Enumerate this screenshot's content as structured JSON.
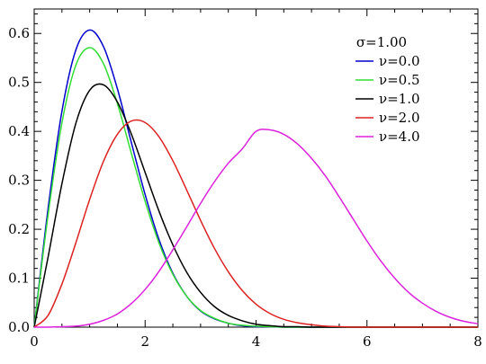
{
  "chart_data": {
    "type": "line",
    "title": "",
    "xlabel": "",
    "ylabel": "",
    "xlim": [
      0,
      8
    ],
    "ylim": [
      0,
      0.65
    ],
    "xticks": [
      0,
      2,
      4,
      6,
      8
    ],
    "xtick_labels": [
      "0",
      "2",
      "4",
      "6",
      "8"
    ],
    "yticks": [
      0,
      0.1,
      0.2,
      0.3,
      0.4,
      0.5,
      0.6
    ],
    "ytick_labels": [
      "0.0",
      "0.1",
      "0.2",
      "0.3",
      "0.4",
      "0.5",
      "0.6"
    ],
    "grid": false,
    "legend_position": "top-right",
    "legend_title": "σ=1.00",
    "x": [
      0.0,
      0.25,
      0.5,
      0.75,
      1.0,
      1.25,
      1.5,
      1.75,
      2.0,
      2.25,
      2.5,
      2.75,
      3.0,
      3.25,
      3.5,
      3.75,
      4.0,
      4.25,
      4.5,
      4.75,
      5.0,
      5.25,
      5.5,
      5.75,
      6.0,
      6.25,
      6.5,
      6.75,
      7.0,
      7.25,
      7.5,
      7.75,
      8.0
    ],
    "series": [
      {
        "name": "ν=0.0",
        "color": "#0000cc",
        "values": [
          0.0,
          0.242,
          0.441,
          0.566,
          0.607,
          0.573,
          0.487,
          0.378,
          0.271,
          0.179,
          0.11,
          0.063,
          0.033,
          0.017,
          0.008,
          0.003,
          0.001,
          0.001,
          0.0,
          0.0,
          0.0,
          0.0,
          0.0,
          0.0,
          0.0,
          0.0,
          0.0,
          0.0,
          0.0,
          0.0,
          0.0,
          0.0,
          0.0
        ]
      },
      {
        "name": "ν=0.5",
        "color": "#33dd33",
        "values": [
          0.0,
          0.229,
          0.417,
          0.535,
          0.571,
          0.538,
          0.457,
          0.356,
          0.257,
          0.172,
          0.108,
          0.063,
          0.034,
          0.018,
          0.008,
          0.004,
          0.002,
          0.001,
          0.0,
          0.0,
          0.0,
          0.0,
          0.0,
          0.0,
          0.0,
          0.0,
          0.0,
          0.0,
          0.0,
          0.0,
          0.0,
          0.0,
          0.0
        ]
      },
      {
        "name": "ν=1.0",
        "color": "#000000",
        "values": [
          0.0,
          0.143,
          0.293,
          0.416,
          0.484,
          0.495,
          0.46,
          0.395,
          0.316,
          0.237,
          0.168,
          0.112,
          0.071,
          0.042,
          0.024,
          0.013,
          0.006,
          0.003,
          0.001,
          0.001,
          0.0,
          0.0,
          0.0,
          0.0,
          0.0,
          0.0,
          0.0,
          0.0,
          0.0,
          0.0,
          0.0,
          0.0,
          0.0
        ]
      },
      {
        "name": "ν=2.0",
        "color": "#dd2222",
        "values": [
          0.0,
          0.024,
          0.088,
          0.172,
          0.261,
          0.339,
          0.394,
          0.421,
          0.418,
          0.389,
          0.34,
          0.28,
          0.218,
          0.161,
          0.113,
          0.075,
          0.047,
          0.028,
          0.016,
          0.009,
          0.005,
          0.002,
          0.001,
          0.0,
          0.0,
          0.0,
          0.0,
          0.0,
          0.0,
          0.0,
          0.0,
          0.0,
          0.0
        ]
      },
      {
        "name": "ν=4.0",
        "color": "#dd22dd",
        "values": [
          0.0,
          0.0,
          0.001,
          0.002,
          0.006,
          0.014,
          0.027,
          0.048,
          0.077,
          0.114,
          0.158,
          0.205,
          0.253,
          0.297,
          0.335,
          0.364,
          0.4,
          0.403,
          0.394,
          0.374,
          0.345,
          0.309,
          0.266,
          0.221,
          0.176,
          0.135,
          0.1,
          0.071,
          0.049,
          0.032,
          0.02,
          0.012,
          0.007
        ]
      }
    ]
  }
}
